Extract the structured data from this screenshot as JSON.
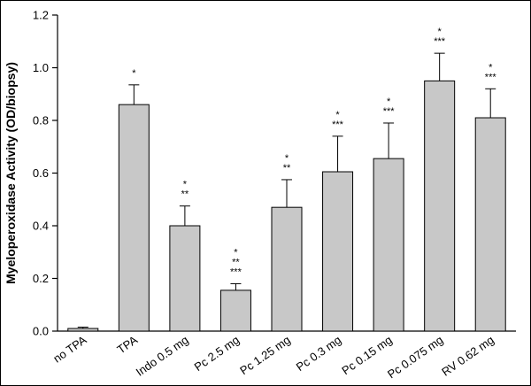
{
  "chart_data": {
    "type": "bar",
    "title": "",
    "xlabel": "",
    "ylabel": "Myeloperoxidase Activity (OD/biopsy)",
    "ylim": [
      0.0,
      1.2
    ],
    "yticks": [
      0.0,
      0.2,
      0.4,
      0.6,
      0.8,
      1.0,
      1.2
    ],
    "ytick_labels": [
      "0.0",
      "0.2",
      "0.4",
      "0.6",
      "0.8",
      "1.0",
      "1.2"
    ],
    "grid": false,
    "legend": null,
    "categories": [
      "no TPA",
      "TPA",
      "Indo 0.5 mg",
      "Pc 2.5 mg",
      "Pc 1.25 mg",
      "Pc 0.3 mg",
      "Pc 0.15 mg",
      "Pc 0.075 mg",
      "RV 0.62 mg"
    ],
    "values": [
      0.01,
      0.86,
      0.4,
      0.155,
      0.47,
      0.605,
      0.655,
      0.95,
      0.81
    ],
    "error_bars": [
      0.005,
      0.075,
      0.075,
      0.025,
      0.105,
      0.135,
      0.135,
      0.105,
      0.11
    ],
    "significance": [
      [],
      [
        "*"
      ],
      [
        "*",
        "**"
      ],
      [
        "*",
        "**",
        "***"
      ],
      [
        "*",
        "**"
      ],
      [
        "*",
        "***"
      ],
      [
        "*",
        "***"
      ],
      [
        "*",
        "***"
      ],
      [
        "*",
        "***"
      ]
    ],
    "bar_color": "#c8c8c8",
    "bar_border_color": "#000000",
    "axis_color": "#000000"
  }
}
